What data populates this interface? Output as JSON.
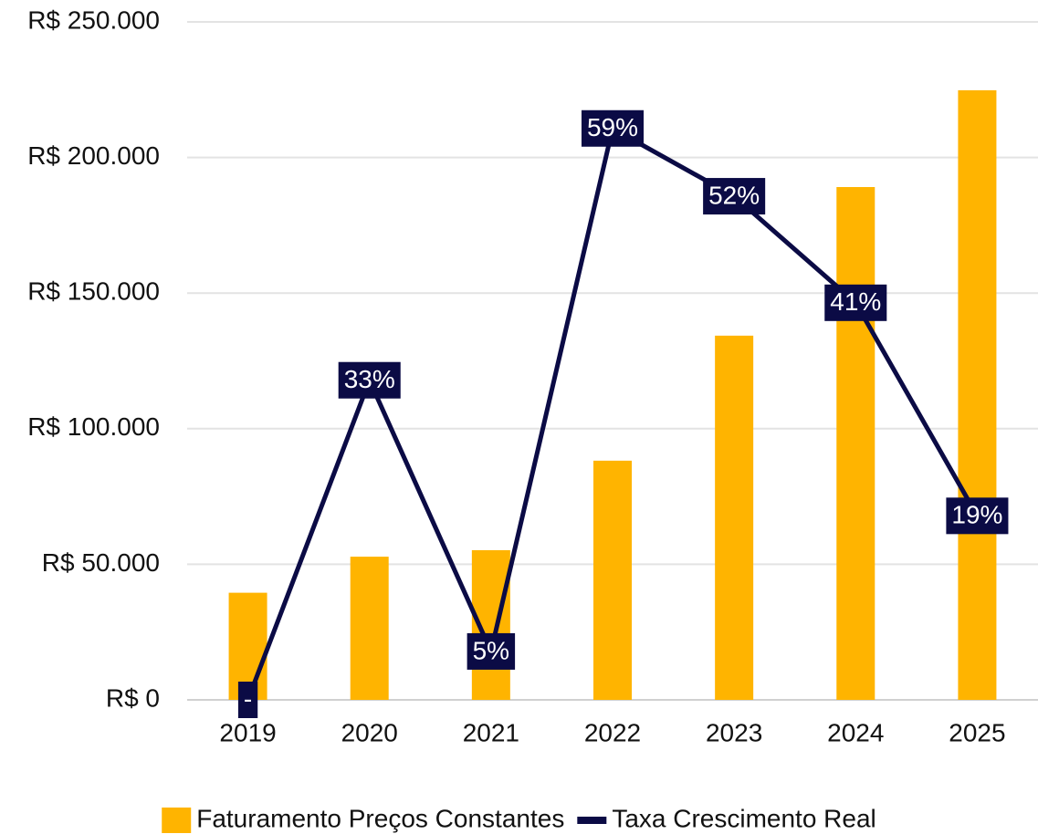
{
  "chart_data": {
    "type": "bar_line",
    "categories": [
      "2019",
      "2020",
      "2021",
      "2022",
      "2023",
      "2024",
      "2025"
    ],
    "series": [
      {
        "name": "Faturamento Preços Constantes",
        "color": "#ffb400",
        "type": "bar",
        "values": [
          39500,
          52800,
          55200,
          88200,
          134300,
          189100,
          224800
        ]
      },
      {
        "name": "Taxa Crescimento Real",
        "color": "#0b0b45",
        "type": "line",
        "axis": "y2",
        "values": [
          0,
          33,
          5,
          59,
          52,
          41,
          19
        ],
        "value_labels": [
          "-",
          "33%",
          "5%",
          "59%",
          "52%",
          "41%",
          "19%"
        ]
      }
    ],
    "ylim": [
      0,
      250000
    ],
    "yticks": [
      {
        "value": 0,
        "label": "R$ 0"
      },
      {
        "value": 50000,
        "label": "R$ 50.000"
      },
      {
        "value": 100000,
        "label": "R$ 100.000"
      },
      {
        "value": 150000,
        "label": "R$ 150.000"
      },
      {
        "value": 200000,
        "label": "R$ 200.000"
      },
      {
        "value": 250000,
        "label": "R$ 250.000"
      }
    ],
    "y2lim": [
      0,
      70
    ],
    "grid": true,
    "legend": "bottom"
  }
}
